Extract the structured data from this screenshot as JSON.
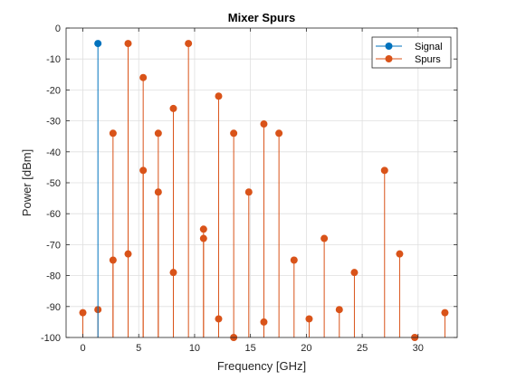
{
  "chart_data": {
    "type": "stem",
    "title": "Mixer Spurs",
    "xlabel": "Frequency [GHz]",
    "ylabel": "Power [dBm]",
    "xlim": [
      -1.5,
      33.5
    ],
    "ylim": [
      -100,
      0
    ],
    "xticks": [
      "0",
      "5",
      "10",
      "15",
      "20",
      "25",
      "30"
    ],
    "yticks": [
      "0",
      "-10",
      "-20",
      "-30",
      "-40",
      "-50",
      "-60",
      "-70",
      "-80",
      "-90",
      "-100"
    ],
    "grid": true,
    "legend_position": "top-right",
    "baseline": -100,
    "series": [
      {
        "name": "Signal",
        "color": "#0072bd",
        "points": [
          [
            1.35,
            -5
          ]
        ]
      },
      {
        "name": "Spurs",
        "color": "#d95319",
        "points": [
          [
            0,
            -92
          ],
          [
            1.35,
            -91
          ],
          [
            2.7,
            -34
          ],
          [
            2.7,
            -75
          ],
          [
            4.05,
            -5
          ],
          [
            4.05,
            -73
          ],
          [
            5.4,
            -16
          ],
          [
            5.4,
            -46
          ],
          [
            6.75,
            -34
          ],
          [
            6.75,
            -53
          ],
          [
            8.1,
            -26
          ],
          [
            8.1,
            -79
          ],
          [
            9.45,
            -5
          ],
          [
            10.8,
            -65
          ],
          [
            10.8,
            -68
          ],
          [
            12.15,
            -22
          ],
          [
            12.15,
            -94
          ],
          [
            13.5,
            -34
          ],
          [
            13.5,
            -100
          ],
          [
            14.85,
            -53
          ],
          [
            16.2,
            -31
          ],
          [
            16.2,
            -95
          ],
          [
            17.55,
            -34
          ],
          [
            18.9,
            -75
          ],
          [
            20.25,
            -94
          ],
          [
            21.6,
            -68
          ],
          [
            22.95,
            -91
          ],
          [
            24.3,
            -79
          ],
          [
            27.0,
            -46
          ],
          [
            28.35,
            -73
          ],
          [
            29.7,
            -100
          ],
          [
            32.4,
            -92
          ]
        ]
      }
    ]
  }
}
